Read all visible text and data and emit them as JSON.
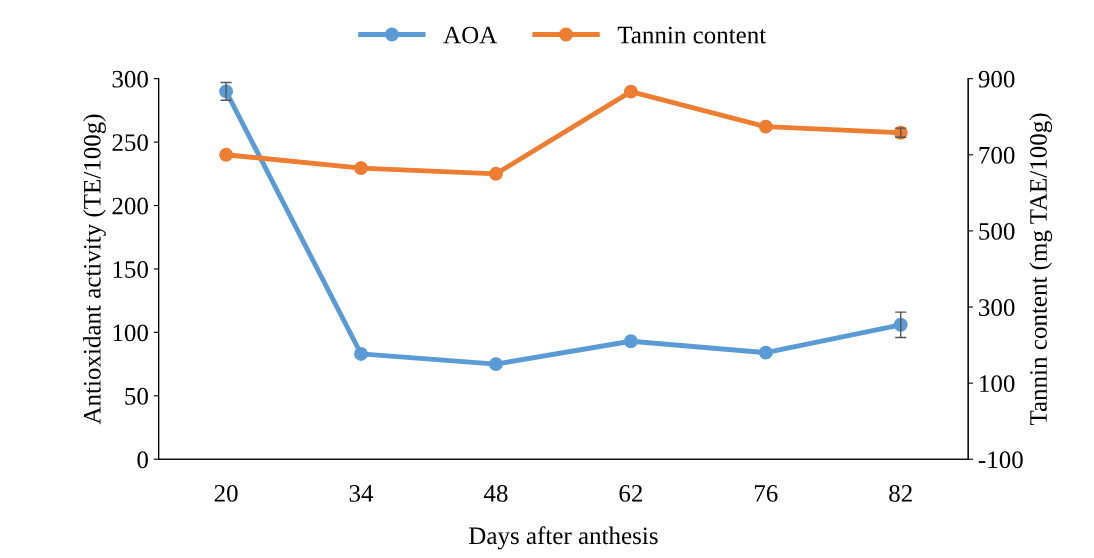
{
  "chart_data": {
    "type": "line",
    "xlabel": "Days after anthesis",
    "ylabel": "Antioxidant activity (TE/100g)",
    "y2label": "Tannin content (mg TAE/100g)",
    "categories": [
      "20",
      "34",
      "48",
      "62",
      "76",
      "82"
    ],
    "series": [
      {
        "name": "AOA",
        "color": "#5b9bd5",
        "values": [
          290,
          83,
          75,
          93,
          84,
          106
        ],
        "errors": [
          7,
          null,
          null,
          null,
          null,
          10
        ]
      },
      {
        "name": "Tannin content",
        "color": "#ed7d31",
        "axis": "y2",
        "values": [
          700,
          665,
          650,
          866,
          774,
          758
        ],
        "errors": [
          null,
          null,
          null,
          null,
          null,
          12
        ]
      }
    ],
    "ylim": [
      0,
      300
    ],
    "yticks": [
      0,
      50,
      100,
      150,
      200,
      250,
      300
    ],
    "y2lim": [
      -100,
      900
    ],
    "y2ticks": [
      -100,
      100,
      300,
      500,
      700,
      900
    ],
    "marker": "circle",
    "line_style": "solid",
    "grid": false,
    "legend": "top"
  }
}
